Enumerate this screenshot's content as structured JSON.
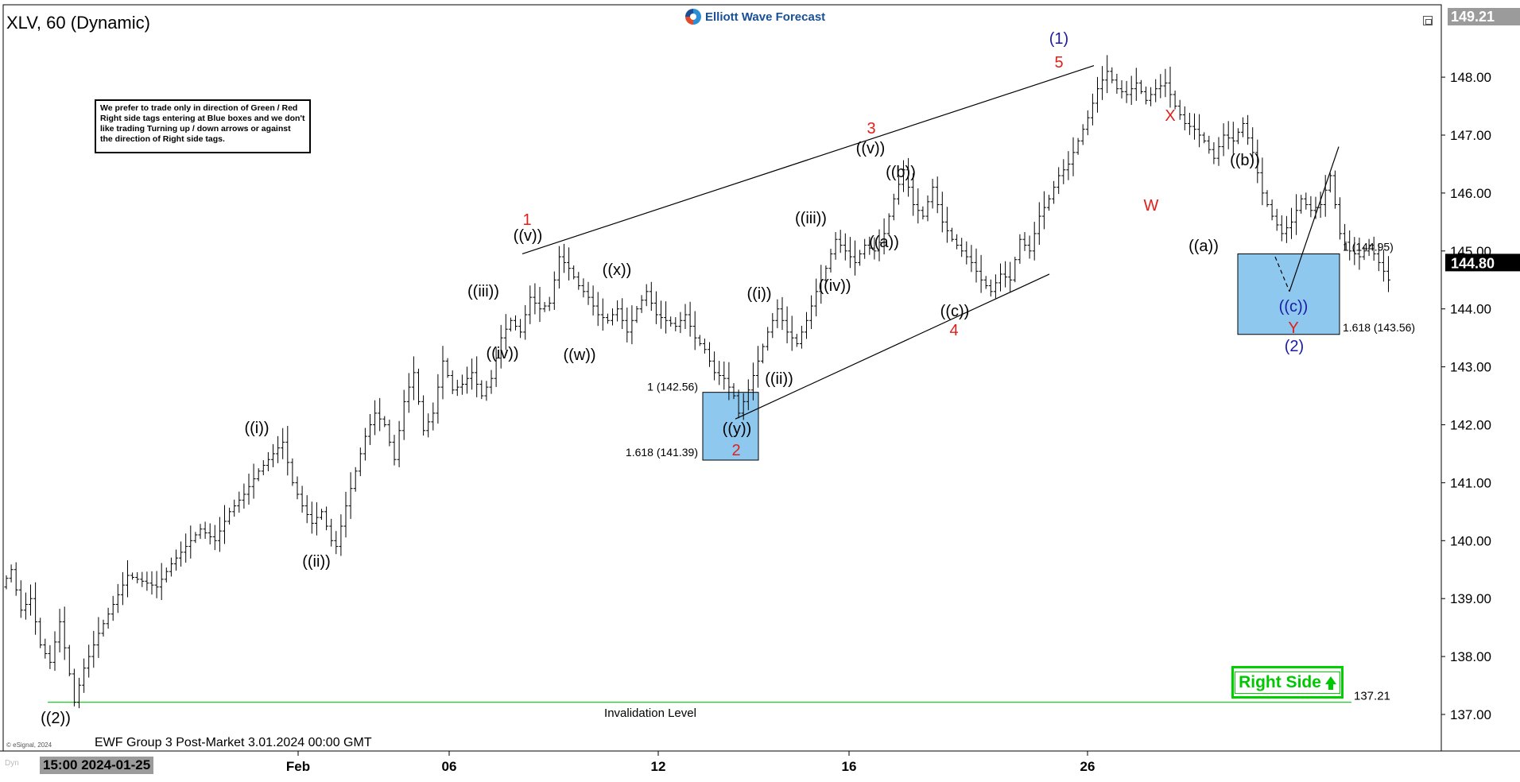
{
  "header": {
    "symbol_title": "XLV, 60 (Dynamic)",
    "logo_text": "Elliott Wave Forecast"
  },
  "note_box": {
    "text": "We prefer to trade only in direction of Green / Red Right side tags entering at Blue boxes and we don't like trading Turning up / down arrows or against the direction of Right side tags."
  },
  "footer": {
    "caption": "EWF Group 3 Post-Market 3.01.2024 00:00 GMT",
    "copyright": "© eSignal, 2024",
    "cursor_time": "15:00 2024-01-25",
    "dyn_label": "Dyn"
  },
  "right_side_tag": {
    "label": "Right Side",
    "color": "#00c800"
  },
  "chart_data": {
    "type": "ohlc",
    "y_axis": {
      "min": 136.7,
      "max": 149.35,
      "ticks": [
        "137.00",
        "138.00",
        "139.00",
        "140.00",
        "141.00",
        "142.00",
        "143.00",
        "144.00",
        "145.00",
        "146.00",
        "147.00",
        "148.00"
      ],
      "top_label": "149.21",
      "last_price": "144.80"
    },
    "x_axis": {
      "ticks": [
        "Feb",
        "06",
        "12",
        "16",
        "26"
      ]
    },
    "invalidation": {
      "value": 137.21,
      "label": "137.21",
      "caption": "Invalidation Level",
      "color": "#00cc00"
    },
    "blue_boxes": [
      {
        "top": 142.56,
        "bottom": 141.39,
        "top_label": "1 (142.56)",
        "bottom_label": "1.618 (141.39)"
      },
      {
        "top": 144.95,
        "bottom": 143.56,
        "top_label": "1 (144.95)",
        "bottom_label": "1.618 (143.56)"
      }
    ],
    "wave_labels": [
      {
        "text": "((2))",
        "color": "#000000"
      },
      {
        "text": "((i))",
        "color": "#000000"
      },
      {
        "text": "((ii))",
        "color": "#000000"
      },
      {
        "text": "((iii))",
        "color": "#000000"
      },
      {
        "text": "((iv))",
        "color": "#000000"
      },
      {
        "text": "((v))",
        "color": "#000000"
      },
      {
        "text": "1",
        "color": "#e0201b"
      },
      {
        "text": "((w))",
        "color": "#000000"
      },
      {
        "text": "((x))",
        "color": "#000000"
      },
      {
        "text": "((y))",
        "color": "#000000"
      },
      {
        "text": "2",
        "color": "#e0201b"
      },
      {
        "text": "((i))",
        "color": "#000000"
      },
      {
        "text": "((ii))",
        "color": "#000000"
      },
      {
        "text": "((iii))",
        "color": "#000000"
      },
      {
        "text": "((iv))",
        "color": "#000000"
      },
      {
        "text": "((v))",
        "color": "#000000"
      },
      {
        "text": "3",
        "color": "#e0201b"
      },
      {
        "text": "((a))",
        "color": "#000000"
      },
      {
        "text": "((b))",
        "color": "#000000"
      },
      {
        "text": "((c))",
        "color": "#000000"
      },
      {
        "text": "4",
        "color": "#e0201b"
      },
      {
        "text": "5",
        "color": "#e0201b"
      },
      {
        "text": "(1)",
        "color": "#1a1aa8"
      },
      {
        "text": "W",
        "color": "#e0201b"
      },
      {
        "text": "X",
        "color": "#e0201b"
      },
      {
        "text": "((a))",
        "color": "#000000"
      },
      {
        "text": "((b))",
        "color": "#000000"
      },
      {
        "text": "((c))",
        "color": "#1a1aa8"
      },
      {
        "text": "Y",
        "color": "#e0201b"
      },
      {
        "text": "(2)",
        "color": "#1a1aa8"
      }
    ],
    "price_path": [
      [
        0,
        139.2
      ],
      [
        2,
        139.5
      ],
      [
        4,
        138.8
      ],
      [
        6,
        139.0
      ],
      [
        8,
        138.2
      ],
      [
        10,
        137.9
      ],
      [
        12,
        138.6
      ],
      [
        14,
        137.7
      ],
      [
        15,
        137.21
      ],
      [
        17,
        137.8
      ],
      [
        20,
        138.4
      ],
      [
        23,
        138.9
      ],
      [
        26,
        139.4
      ],
      [
        29,
        139.3
      ],
      [
        32,
        139.2
      ],
      [
        35,
        139.6
      ],
      [
        38,
        139.9
      ],
      [
        41,
        140.2
      ],
      [
        44,
        140.0
      ],
      [
        47,
        140.5
      ],
      [
        50,
        140.8
      ],
      [
        53,
        141.2
      ],
      [
        56,
        141.5
      ],
      [
        58,
        141.7
      ],
      [
        60,
        141.0
      ],
      [
        62,
        140.6
      ],
      [
        64,
        140.3
      ],
      [
        66,
        140.5
      ],
      [
        68,
        140.0
      ],
      [
        69,
        139.9
      ],
      [
        71,
        140.6
      ],
      [
        73,
        141.2
      ],
      [
        75,
        141.8
      ],
      [
        77,
        142.2
      ],
      [
        79,
        142.0
      ],
      [
        81,
        141.4
      ],
      [
        83,
        142.4
      ],
      [
        85,
        142.9
      ],
      [
        87,
        141.9
      ],
      [
        89,
        142.2
      ],
      [
        91,
        143.1
      ],
      [
        93,
        142.6
      ],
      [
        95,
        142.7
      ],
      [
        97,
        142.9
      ],
      [
        99,
        142.5
      ],
      [
        101,
        142.8
      ],
      [
        103,
        143.5
      ],
      [
        105,
        143.8
      ],
      [
        107,
        143.6
      ],
      [
        109,
        144.2
      ],
      [
        111,
        144.0
      ],
      [
        113,
        144.1
      ],
      [
        115,
        144.9
      ],
      [
        117,
        144.7
      ],
      [
        119,
        144.4
      ],
      [
        121,
        144.2
      ],
      [
        123,
        143.9
      ],
      [
        125,
        143.8
      ],
      [
        127,
        144.0
      ],
      [
        129,
        143.6
      ],
      [
        131,
        144.0
      ],
      [
        133,
        144.3
      ],
      [
        135,
        143.9
      ],
      [
        137,
        143.8
      ],
      [
        139,
        143.7
      ],
      [
        141,
        143.9
      ],
      [
        143,
        143.5
      ],
      [
        145,
        143.3
      ],
      [
        147,
        142.9
      ],
      [
        149,
        142.8
      ],
      [
        151,
        142.5
      ],
      [
        152,
        142.2
      ],
      [
        154,
        142.6
      ],
      [
        156,
        143.1
      ],
      [
        158,
        143.6
      ],
      [
        160,
        144.0
      ],
      [
        162,
        143.6
      ],
      [
        164,
        143.4
      ],
      [
        166,
        143.8
      ],
      [
        168,
        144.3
      ],
      [
        170,
        144.7
      ],
      [
        172,
        145.2
      ],
      [
        174,
        145.0
      ],
      [
        176,
        144.8
      ],
      [
        178,
        145.1
      ],
      [
        180,
        145.0
      ],
      [
        182,
        145.3
      ],
      [
        184,
        145.9
      ],
      [
        186,
        146.4
      ],
      [
        188,
        145.8
      ],
      [
        190,
        145.6
      ],
      [
        192,
        146.1
      ],
      [
        194,
        145.5
      ],
      [
        196,
        145.2
      ],
      [
        198,
        145.0
      ],
      [
        200,
        144.8
      ],
      [
        202,
        144.5
      ],
      [
        204,
        144.3
      ],
      [
        206,
        144.6
      ],
      [
        208,
        144.5
      ],
      [
        210,
        145.2
      ],
      [
        212,
        145.0
      ],
      [
        214,
        145.6
      ],
      [
        216,
        145.9
      ],
      [
        218,
        146.3
      ],
      [
        220,
        146.5
      ],
      [
        222,
        146.9
      ],
      [
        224,
        147.3
      ],
      [
        226,
        147.8
      ],
      [
        228,
        148.1
      ],
      [
        230,
        147.8
      ],
      [
        232,
        147.7
      ],
      [
        234,
        147.9
      ],
      [
        236,
        147.6
      ],
      [
        238,
        147.8
      ],
      [
        240,
        147.9
      ],
      [
        242,
        147.5
      ],
      [
        244,
        147.2
      ],
      [
        246,
        147.1
      ],
      [
        248,
        146.9
      ],
      [
        250,
        146.6
      ],
      [
        252,
        147.0
      ],
      [
        254,
        146.9
      ],
      [
        256,
        147.2
      ],
      [
        258,
        146.7
      ],
      [
        260,
        146.0
      ],
      [
        262,
        145.6
      ],
      [
        264,
        145.3
      ],
      [
        266,
        145.5
      ],
      [
        268,
        145.9
      ],
      [
        270,
        145.7
      ],
      [
        272,
        145.8
      ],
      [
        274,
        146.3
      ],
      [
        276,
        145.3
      ],
      [
        278,
        145.0
      ],
      [
        280,
        144.9
      ],
      [
        282,
        145.1
      ],
      [
        284,
        144.8
      ],
      [
        286,
        144.5
      ]
    ]
  }
}
